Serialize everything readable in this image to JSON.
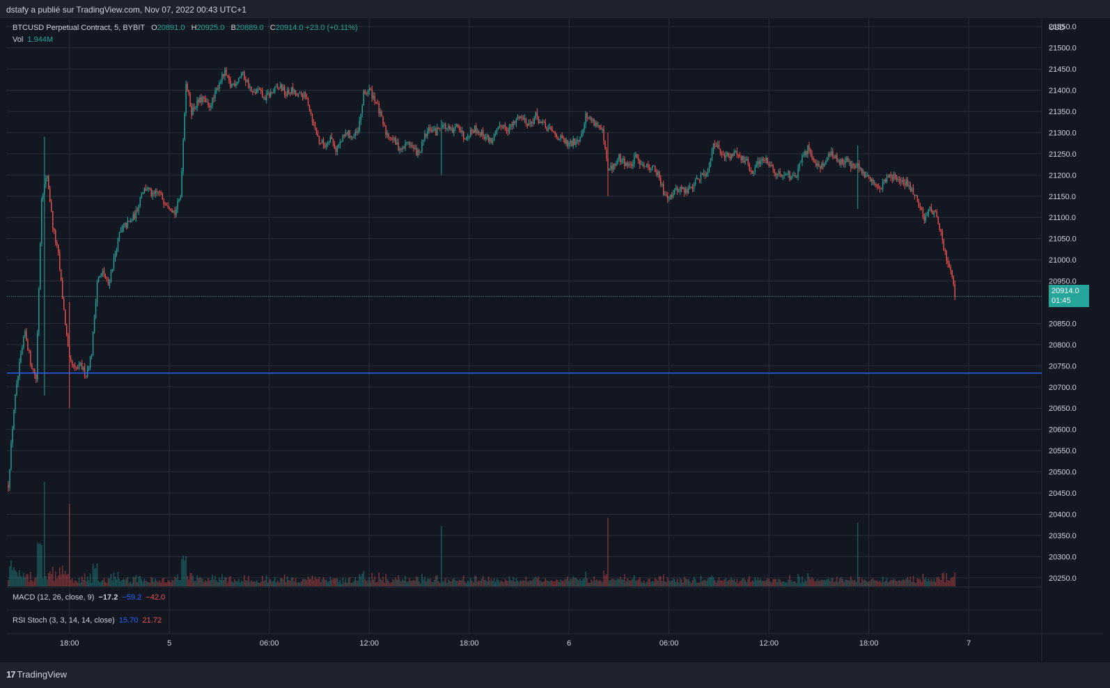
{
  "header": {
    "text": "dstafy a publié sur TradingView.com, Nov 07, 2022 00:43 UTC+1"
  },
  "legend": {
    "symbol": "BTCUSD Perpetual Contract, 5, BYBIT",
    "o_label": "O",
    "o_value": "20891.0",
    "h_label": "H",
    "h_value": "20925.0",
    "b_label": "B",
    "b_value": "20889.0",
    "c_label": "C",
    "c_value": "20914.0",
    "change": "+23.0 (+0.11%)",
    "vol_label": "Vol",
    "vol_value": "1.944M"
  },
  "indicators": {
    "macd": {
      "label": "MACD (12, 26, close, 9)",
      "v1": "−17.2",
      "v2": "−59.2",
      "v3": "−42.0"
    },
    "rsi": {
      "label": "RSI Stoch (3, 3, 14, 14, close)",
      "v1": "15.70",
      "v2": "21.72"
    }
  },
  "price_badge": {
    "price": "20914.0",
    "countdown": "01:45"
  },
  "footer": {
    "logo_text": "TradingView"
  },
  "colors": {
    "background": "#131722",
    "up": "#26a69a",
    "down": "#ef5350",
    "hline": "#2962ff",
    "grid": "#2a2e39",
    "text": "#d1d4dc"
  },
  "chart_data": {
    "type": "candlestick",
    "currency": "USD",
    "interval_minutes": 5,
    "start": "2022-11-04 14:20",
    "ylim": [
      20230,
      21570
    ],
    "y_ticks": [
      "21550.0",
      "21500.0",
      "21450.0",
      "21400.0",
      "21350.0",
      "21300.0",
      "21250.0",
      "21200.0",
      "21150.0",
      "21100.0",
      "21050.0",
      "21000.0",
      "20950.0",
      "20850.0",
      "20800.0",
      "20750.0",
      "20700.0",
      "20650.0",
      "20600.0",
      "20550.0",
      "20500.0",
      "20450.0",
      "20400.0",
      "20350.0",
      "20300.0",
      "20250.0"
    ],
    "x_ticks": [
      {
        "label": "18:00",
        "time": "2022-11-04 18:00"
      },
      {
        "label": "5",
        "time": "2022-11-05 00:00"
      },
      {
        "label": "06:00",
        "time": "2022-11-05 06:00"
      },
      {
        "label": "12:00",
        "time": "2022-11-05 12:00"
      },
      {
        "label": "18:00",
        "time": "2022-11-05 18:00"
      },
      {
        "label": "6",
        "time": "2022-11-06 00:00"
      },
      {
        "label": "06:00",
        "time": "2022-11-06 06:00"
      },
      {
        "label": "12:00",
        "time": "2022-11-06 12:00"
      },
      {
        "label": "18:00",
        "time": "2022-11-06 18:00"
      },
      {
        "label": "7",
        "time": "2022-11-07 00:00"
      }
    ],
    "horizontal_line": 20733,
    "last_price": 20914,
    "anchors": [
      [
        "2022-11-04 14:20",
        20470
      ],
      [
        "2022-11-04 14:40",
        20650
      ],
      [
        "2022-11-04 15:00",
        20750
      ],
      [
        "2022-11-04 15:20",
        20830
      ],
      [
        "2022-11-04 15:40",
        20760
      ],
      [
        "2022-11-04 16:00",
        20720
      ],
      [
        "2022-11-04 16:20",
        21150
      ],
      [
        "2022-11-04 16:40",
        21200
      ],
      [
        "2022-11-04 17:00",
        21080
      ],
      [
        "2022-11-04 17:20",
        21010
      ],
      [
        "2022-11-04 17:40",
        20880
      ],
      [
        "2022-11-04 18:00",
        20760
      ],
      [
        "2022-11-04 18:20",
        20740
      ],
      [
        "2022-11-04 18:40",
        20750
      ],
      [
        "2022-11-04 19:00",
        20730
      ],
      [
        "2022-11-04 19:20",
        20780
      ],
      [
        "2022-11-04 19:40",
        20950
      ],
      [
        "2022-11-04 20:00",
        20970
      ],
      [
        "2022-11-04 20:20",
        20940
      ],
      [
        "2022-11-04 20:40",
        21000
      ],
      [
        "2022-11-04 21:00",
        21060
      ],
      [
        "2022-11-04 21:20",
        21080
      ],
      [
        "2022-11-04 21:40",
        21090
      ],
      [
        "2022-11-04 22:00",
        21110
      ],
      [
        "2022-11-04 22:20",
        21160
      ],
      [
        "2022-11-04 22:40",
        21170
      ],
      [
        "2022-11-04 23:00",
        21150
      ],
      [
        "2022-11-04 23:20",
        21160
      ],
      [
        "2022-11-04 23:40",
        21140
      ],
      [
        "2022-11-05 00:00",
        21130
      ],
      [
        "2022-11-05 00:20",
        21110
      ],
      [
        "2022-11-05 00:40",
        21150
      ],
      [
        "2022-11-05 01:00",
        21420
      ],
      [
        "2022-11-05 01:20",
        21350
      ],
      [
        "2022-11-05 01:40",
        21370
      ],
      [
        "2022-11-05 02:00",
        21380
      ],
      [
        "2022-11-05 02:20",
        21360
      ],
      [
        "2022-11-05 02:40",
        21380
      ],
      [
        "2022-11-05 03:00",
        21420
      ],
      [
        "2022-11-05 03:20",
        21440
      ],
      [
        "2022-11-05 03:40",
        21410
      ],
      [
        "2022-11-05 04:00",
        21420
      ],
      [
        "2022-11-05 04:20",
        21440
      ],
      [
        "2022-11-05 04:40",
        21420
      ],
      [
        "2022-11-05 05:00",
        21390
      ],
      [
        "2022-11-05 05:20",
        21400
      ],
      [
        "2022-11-05 05:40",
        21380
      ],
      [
        "2022-11-05 06:00",
        21390
      ],
      [
        "2022-11-05 06:20",
        21400
      ],
      [
        "2022-11-05 06:40",
        21410
      ],
      [
        "2022-11-05 07:00",
        21390
      ],
      [
        "2022-11-05 07:20",
        21400
      ],
      [
        "2022-11-05 07:40",
        21385
      ],
      [
        "2022-11-05 08:00",
        21390
      ],
      [
        "2022-11-05 08:20",
        21370
      ],
      [
        "2022-11-05 08:40",
        21320
      ],
      [
        "2022-11-05 09:00",
        21280
      ],
      [
        "2022-11-05 09:20",
        21270
      ],
      [
        "2022-11-05 09:40",
        21290
      ],
      [
        "2022-11-05 10:00",
        21260
      ],
      [
        "2022-11-05 10:20",
        21280
      ],
      [
        "2022-11-05 10:40",
        21300
      ],
      [
        "2022-11-05 11:00",
        21290
      ],
      [
        "2022-11-05 11:20",
        21300
      ],
      [
        "2022-11-05 11:40",
        21390
      ],
      [
        "2022-11-05 12:00",
        21400
      ],
      [
        "2022-11-05 12:20",
        21380
      ],
      [
        "2022-11-05 12:40",
        21340
      ],
      [
        "2022-11-05 13:00",
        21300
      ],
      [
        "2022-11-05 13:20",
        21290
      ],
      [
        "2022-11-05 13:40",
        21270
      ],
      [
        "2022-11-05 14:00",
        21260
      ],
      [
        "2022-11-05 14:20",
        21280
      ],
      [
        "2022-11-05 14:40",
        21260
      ],
      [
        "2022-11-05 15:00",
        21250
      ],
      [
        "2022-11-05 15:20",
        21290
      ],
      [
        "2022-11-05 15:40",
        21310
      ],
      [
        "2022-11-05 16:00",
        21300
      ],
      [
        "2022-11-05 16:20",
        21320
      ],
      [
        "2022-11-05 16:40",
        21310
      ],
      [
        "2022-11-05 17:00",
        21300
      ],
      [
        "2022-11-05 17:20",
        21320
      ],
      [
        "2022-11-05 17:40",
        21290
      ],
      [
        "2022-11-05 18:00",
        21300
      ],
      [
        "2022-11-05 18:20",
        21310
      ],
      [
        "2022-11-05 18:40",
        21300
      ],
      [
        "2022-11-05 19:00",
        21290
      ],
      [
        "2022-11-05 19:20",
        21280
      ],
      [
        "2022-11-05 19:40",
        21300
      ],
      [
        "2022-11-05 20:00",
        21320
      ],
      [
        "2022-11-05 20:20",
        21310
      ],
      [
        "2022-11-05 20:40",
        21320
      ],
      [
        "2022-11-05 21:00",
        21340
      ],
      [
        "2022-11-05 21:20",
        21330
      ],
      [
        "2022-11-05 21:40",
        21320
      ],
      [
        "2022-11-05 22:00",
        21340
      ],
      [
        "2022-11-05 22:20",
        21320
      ],
      [
        "2022-11-05 22:40",
        21310
      ],
      [
        "2022-11-05 23:00",
        21300
      ],
      [
        "2022-11-05 23:20",
        21290
      ],
      [
        "2022-11-05 23:40",
        21280
      ],
      [
        "2022-11-06 00:00",
        21270
      ],
      [
        "2022-11-06 00:20",
        21280
      ],
      [
        "2022-11-06 00:40",
        21290
      ],
      [
        "2022-11-06 01:00",
        21340
      ],
      [
        "2022-11-06 01:20",
        21330
      ],
      [
        "2022-11-06 01:40",
        21320
      ],
      [
        "2022-11-06 02:00",
        21300
      ],
      [
        "2022-11-06 02:20",
        21210
      ],
      [
        "2022-11-06 02:40",
        21220
      ],
      [
        "2022-11-06 03:00",
        21240
      ],
      [
        "2022-11-06 03:20",
        21230
      ],
      [
        "2022-11-06 03:40",
        21220
      ],
      [
        "2022-11-06 04:00",
        21240
      ],
      [
        "2022-11-06 04:20",
        21230
      ],
      [
        "2022-11-06 04:40",
        21220
      ],
      [
        "2022-11-06 05:00",
        21220
      ],
      [
        "2022-11-06 05:20",
        21200
      ],
      [
        "2022-11-06 05:40",
        21160
      ],
      [
        "2022-11-06 06:00",
        21150
      ],
      [
        "2022-11-06 06:20",
        21160
      ],
      [
        "2022-11-06 06:40",
        21170
      ],
      [
        "2022-11-06 07:00",
        21160
      ],
      [
        "2022-11-06 07:20",
        21170
      ],
      [
        "2022-11-06 07:40",
        21190
      ],
      [
        "2022-11-06 08:00",
        21200
      ],
      [
        "2022-11-06 08:20",
        21210
      ],
      [
        "2022-11-06 08:40",
        21280
      ],
      [
        "2022-11-06 09:00",
        21260
      ],
      [
        "2022-11-06 09:20",
        21250
      ],
      [
        "2022-11-06 09:40",
        21240
      ],
      [
        "2022-11-06 10:00",
        21260
      ],
      [
        "2022-11-06 10:20",
        21240
      ],
      [
        "2022-11-06 10:40",
        21230
      ],
      [
        "2022-11-06 11:00",
        21200
      ],
      [
        "2022-11-06 11:20",
        21230
      ],
      [
        "2022-11-06 11:40",
        21240
      ],
      [
        "2022-11-06 12:00",
        21230
      ],
      [
        "2022-11-06 12:20",
        21210
      ],
      [
        "2022-11-06 12:40",
        21200
      ],
      [
        "2022-11-06 13:00",
        21210
      ],
      [
        "2022-11-06 13:20",
        21190
      ],
      [
        "2022-11-06 13:40",
        21200
      ],
      [
        "2022-11-06 14:00",
        21240
      ],
      [
        "2022-11-06 14:20",
        21260
      ],
      [
        "2022-11-06 14:40",
        21240
      ],
      [
        "2022-11-06 15:00",
        21220
      ],
      [
        "2022-11-06 15:20",
        21230
      ],
      [
        "2022-11-06 15:40",
        21250
      ],
      [
        "2022-11-06 16:00",
        21240
      ],
      [
        "2022-11-06 16:20",
        21230
      ],
      [
        "2022-11-06 16:40",
        21240
      ],
      [
        "2022-11-06 17:00",
        21220
      ],
      [
        "2022-11-06 17:20",
        21220
      ],
      [
        "2022-11-06 17:40",
        21200
      ],
      [
        "2022-11-06 18:00",
        21190
      ],
      [
        "2022-11-06 18:20",
        21180
      ],
      [
        "2022-11-06 18:40",
        21170
      ],
      [
        "2022-11-06 19:00",
        21190
      ],
      [
        "2022-11-06 19:20",
        21200
      ],
      [
        "2022-11-06 19:40",
        21190
      ],
      [
        "2022-11-06 20:00",
        21180
      ],
      [
        "2022-11-06 20:20",
        21180
      ],
      [
        "2022-11-06 20:40",
        21160
      ],
      [
        "2022-11-06 21:00",
        21130
      ],
      [
        "2022-11-06 21:20",
        21100
      ],
      [
        "2022-11-06 21:40",
        21120
      ],
      [
        "2022-11-06 22:00",
        21110
      ],
      [
        "2022-11-06 22:20",
        21060
      ],
      [
        "2022-11-06 22:40",
        21000
      ],
      [
        "2022-11-06 23:00",
        20960
      ],
      [
        "2022-11-06 23:10",
        20914
      ]
    ],
    "spike_bars": [
      {
        "time": "2022-11-04 16:30",
        "low": 20680,
        "high": 21290
      },
      {
        "time": "2022-11-04 18:00",
        "low": 20650,
        "high": 20900
      },
      {
        "time": "2022-11-05 16:20",
        "low": 21200,
        "high": 21330
      },
      {
        "time": "2022-11-06 02:20",
        "low": 21150,
        "high": 21300
      },
      {
        "time": "2022-11-06 17:20",
        "low": 21120,
        "high": 21270
      }
    ]
  }
}
